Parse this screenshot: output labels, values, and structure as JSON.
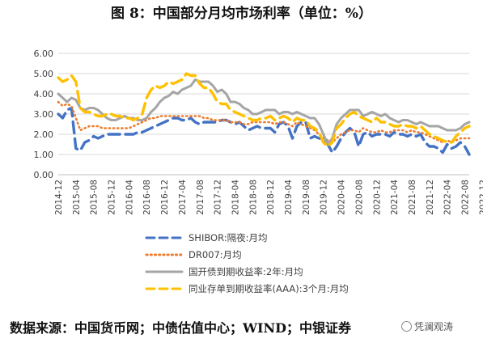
{
  "title": "图 8：中国部分月均市场利率（单位：%）",
  "footer": {
    "source": "数据来源：中国货币网；中债估值中心；WIND；中银证券",
    "watermark": "凭澜观涛"
  },
  "chart_data": {
    "type": "line",
    "title": "图 8：中国部分月均市场利率（单位：%）",
    "xlabel": "",
    "ylabel": "",
    "ylim": [
      0,
      6
    ],
    "yticks": [
      "0.00",
      "1.00",
      "2.00",
      "3.00",
      "4.00",
      "5.00",
      "6.00"
    ],
    "x_tick_labels": [
      "2014-12",
      "2015-04",
      "2015-08",
      "2015-12",
      "2016-04",
      "2016-08",
      "2016-12",
      "2017-04",
      "2017-08",
      "2017-12",
      "2018-04",
      "2018-08",
      "2018-12",
      "2019-04",
      "2019-08",
      "2019-12",
      "2020-04",
      "2020-08",
      "2020-12",
      "2021-04",
      "2021-08",
      "2021-12",
      "2022-04",
      "2022-08",
      "2022-12"
    ],
    "x_start": "2014-12",
    "grid": "horizontal",
    "legend_position": "bottom",
    "series": [
      {
        "name": "SHIBOR:隔夜:月均",
        "color": "#4472C4",
        "style": "dash",
        "values": [
          3.0,
          2.8,
          3.2,
          3.3,
          1.3,
          1.2,
          1.6,
          1.7,
          1.9,
          1.8,
          1.9,
          2.0,
          2.0,
          2.0,
          2.0,
          2.0,
          2.0,
          2.0,
          2.1,
          2.1,
          2.2,
          2.3,
          2.4,
          2.5,
          2.6,
          2.7,
          2.8,
          2.8,
          2.7,
          2.7,
          2.8,
          2.6,
          2.5,
          2.6,
          2.6,
          2.6,
          2.6,
          2.7,
          2.7,
          2.6,
          2.5,
          2.6,
          2.4,
          2.2,
          2.3,
          2.4,
          2.3,
          2.3,
          2.3,
          2.1,
          2.5,
          2.6,
          2.4,
          1.8,
          2.4,
          2.6,
          2.6,
          1.8,
          1.9,
          1.8,
          1.8,
          1.5,
          1.1,
          1.4,
          1.8,
          2.1,
          2.3,
          2.1,
          1.4,
          2.0,
          2.1,
          1.9,
          2.0,
          2.0,
          2.0,
          1.9,
          2.1,
          2.0,
          2.0,
          1.9,
          2.0,
          1.9,
          2.0,
          1.6,
          1.4,
          1.4,
          1.3,
          1.1,
          1.5,
          1.3,
          1.4,
          1.6,
          1.4,
          1.0
        ]
      },
      {
        "name": "DR007:月均",
        "color": "#ED7D31",
        "style": "dot",
        "values": [
          3.6,
          3.4,
          3.5,
          3.4,
          2.8,
          2.2,
          2.3,
          2.4,
          2.4,
          2.4,
          2.3,
          2.3,
          2.3,
          2.3,
          2.3,
          2.3,
          2.3,
          2.4,
          2.5,
          2.6,
          2.7,
          2.8,
          2.8,
          2.9,
          2.9,
          2.9,
          2.9,
          2.9,
          2.9,
          2.9,
          2.9,
          2.9,
          2.9,
          2.8,
          2.8,
          2.7,
          2.7,
          2.7,
          2.7,
          2.6,
          2.6,
          2.6,
          2.5,
          2.5,
          2.6,
          2.6,
          2.6,
          2.6,
          2.6,
          2.5,
          2.6,
          2.6,
          2.5,
          2.4,
          2.6,
          2.5,
          2.4,
          2.3,
          2.2,
          2.0,
          1.8,
          1.7,
          1.6,
          1.8,
          2.0,
          2.1,
          2.2,
          2.2,
          2.1,
          2.3,
          2.2,
          2.1,
          2.1,
          2.2,
          2.1,
          2.1,
          2.2,
          2.2,
          2.2,
          2.1,
          2.2,
          2.1,
          2.1,
          2.0,
          1.9,
          1.8,
          1.7,
          1.6,
          1.7,
          1.6,
          1.7,
          1.8,
          1.8,
          1.8
        ]
      },
      {
        "name": "国开债到期收益率:2年:月均",
        "color": "#A5A5A5",
        "style": "solid",
        "values": [
          4.0,
          3.8,
          3.6,
          3.8,
          3.7,
          3.3,
          3.2,
          3.3,
          3.3,
          3.2,
          3.0,
          2.8,
          2.7,
          2.7,
          2.8,
          2.9,
          2.8,
          2.8,
          2.7,
          2.7,
          2.8,
          3.1,
          3.3,
          3.6,
          3.8,
          3.9,
          4.1,
          4.0,
          4.2,
          4.3,
          4.4,
          4.7,
          4.6,
          4.6,
          4.6,
          4.4,
          4.1,
          4.2,
          4.0,
          3.6,
          3.6,
          3.5,
          3.3,
          3.2,
          3.0,
          3.0,
          3.1,
          3.2,
          3.2,
          3.2,
          3.0,
          3.1,
          3.1,
          3.0,
          3.1,
          3.0,
          2.9,
          2.8,
          2.8,
          2.5,
          2.0,
          1.5,
          1.8,
          2.5,
          2.8,
          3.0,
          3.2,
          3.2,
          3.2,
          2.9,
          3.0,
          3.1,
          3.0,
          2.9,
          3.0,
          2.8,
          2.7,
          2.6,
          2.7,
          2.7,
          2.6,
          2.5,
          2.6,
          2.5,
          2.4,
          2.4,
          2.4,
          2.3,
          2.2,
          2.2,
          2.2,
          2.3,
          2.5,
          2.6
        ]
      },
      {
        "name": "同业存单到期收益率(AAA):3个月:月均",
        "color": "#FFC000",
        "style": "dash",
        "values": [
          4.8,
          4.6,
          4.7,
          4.9,
          4.6,
          3.3,
          3.1,
          3.1,
          3.0,
          2.9,
          2.9,
          3.0,
          3.0,
          2.9,
          2.9,
          2.8,
          2.8,
          2.7,
          2.8,
          3.0,
          3.8,
          4.2,
          4.4,
          4.3,
          4.4,
          4.6,
          4.5,
          4.6,
          4.7,
          5.0,
          4.9,
          4.9,
          4.5,
          4.3,
          4.3,
          4.0,
          3.6,
          3.5,
          3.5,
          3.2,
          3.1,
          3.0,
          2.9,
          2.8,
          2.7,
          2.7,
          2.8,
          2.8,
          2.9,
          2.7,
          2.8,
          2.9,
          2.8,
          2.6,
          2.8,
          2.7,
          2.7,
          2.4,
          2.3,
          2.1,
          1.6,
          1.4,
          1.6,
          2.3,
          2.5,
          2.8,
          3.0,
          3.1,
          2.9,
          2.8,
          2.7,
          2.6,
          2.8,
          2.6,
          2.6,
          2.5,
          2.4,
          2.4,
          2.5,
          2.4,
          2.4,
          2.3,
          2.4,
          2.2,
          2.0,
          1.9,
          1.8,
          1.7,
          1.6,
          1.6,
          1.9,
          2.1,
          2.3,
          2.4
        ]
      }
    ]
  }
}
